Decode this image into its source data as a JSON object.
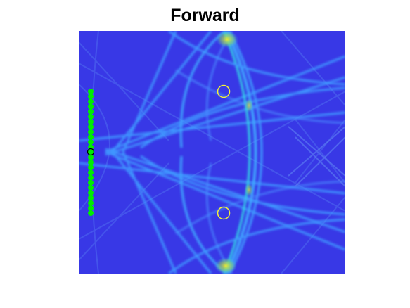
{
  "figure": {
    "title": "Forward",
    "colors": {
      "background": "#3838e6",
      "wave_bright": "#3fa8ff",
      "wave_cyan": "#33d6e6",
      "wave_hot": "#f2ee2a",
      "receiver": "#00ee00",
      "target_circle": "#f2f23a",
      "source_marker": "#000000"
    },
    "receiver_count": 25,
    "target_count": 2,
    "source_count": 1
  }
}
